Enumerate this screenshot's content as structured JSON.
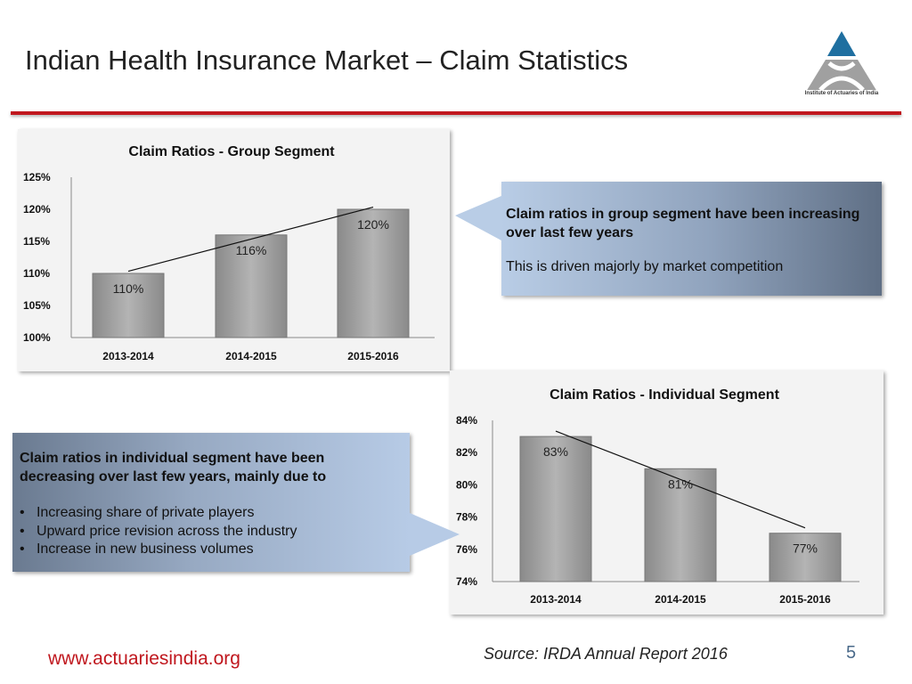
{
  "header": {
    "title": "Indian Health Insurance Market – Claim Statistics",
    "logo_text": "Institute of Actuaries of India"
  },
  "colors": {
    "accent": "#c0171e",
    "logo_blue": "#1f6fa0",
    "bar": "#a6a6a6"
  },
  "callout_group": {
    "headline": "Claim ratios in group segment have been increasing over last few years",
    "body": "This is driven majorly by market competition"
  },
  "callout_individual": {
    "headline": "Claim ratios in individual segment have been decreasing over last few years, mainly due to",
    "bullets": [
      "Increasing share of private players",
      "Upward price revision across the industry",
      "Increase in new business volumes"
    ]
  },
  "footer": {
    "url": "www.actuariesindia.org",
    "source": "Source: IRDA Annual Report 2016",
    "page": "5"
  },
  "chart_data": [
    {
      "type": "bar",
      "title": "Claim Ratios - Group Segment",
      "categories": [
        "2013-2014",
        "2014-2015",
        "2015-2016"
      ],
      "values": [
        110,
        116,
        120
      ],
      "data_labels": [
        "110%",
        "116%",
        "120%"
      ],
      "ylim": [
        100,
        125
      ],
      "yticks": [
        "100%",
        "105%",
        "110%",
        "115%",
        "120%",
        "125%"
      ],
      "trendline": "linear",
      "grid": false,
      "legend": "none"
    },
    {
      "type": "bar",
      "title": "Claim Ratios - Individual Segment",
      "categories": [
        "2013-2014",
        "2014-2015",
        "2015-2016"
      ],
      "values": [
        83,
        81,
        77
      ],
      "data_labels": [
        "83%",
        "81%",
        "77%"
      ],
      "ylim": [
        74,
        84
      ],
      "yticks": [
        "74%",
        "76%",
        "78%",
        "80%",
        "82%",
        "84%"
      ],
      "trendline": "linear",
      "grid": false,
      "legend": "none"
    }
  ]
}
